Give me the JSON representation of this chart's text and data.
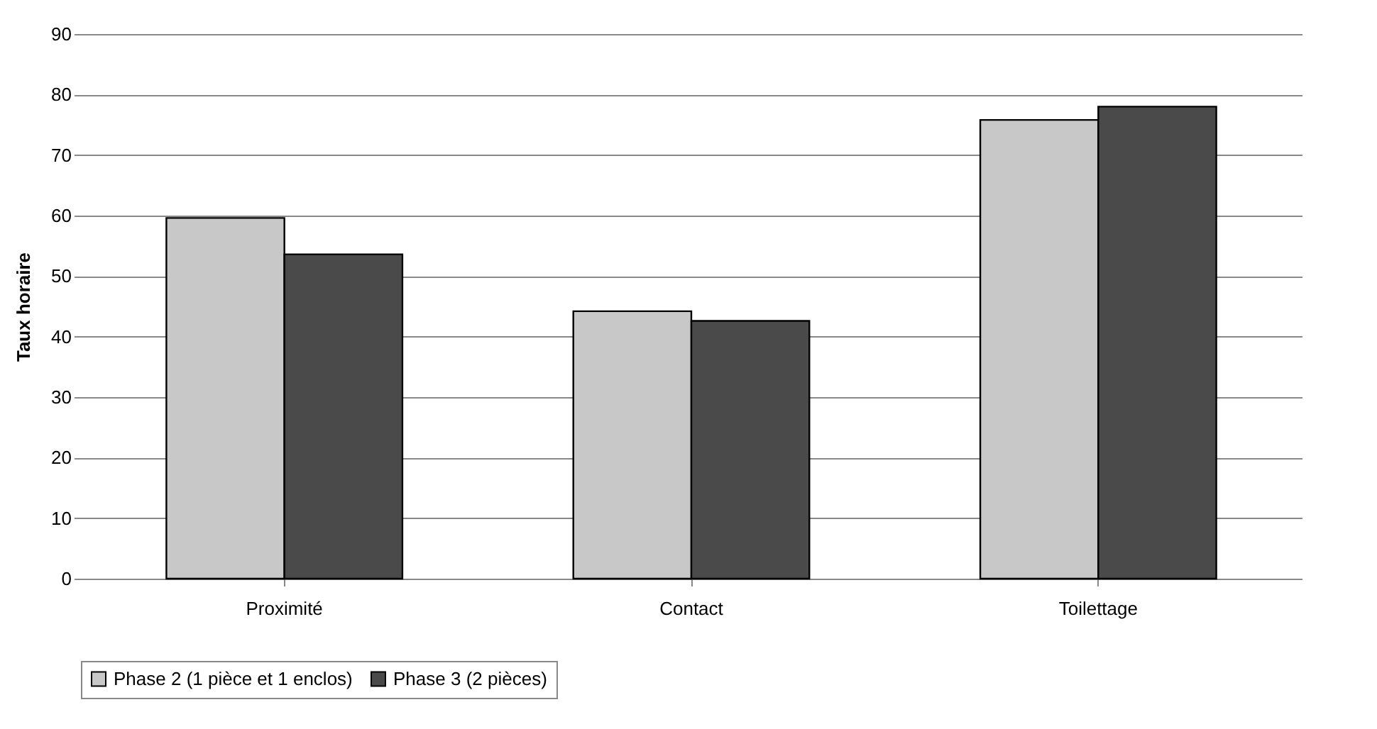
{
  "chart_data": {
    "type": "bar",
    "ylabel": "Taux horaire",
    "categories": [
      "Proximité",
      "Contact",
      "Toilettage"
    ],
    "series": [
      {
        "name": "Phase 2 (1 pièce et 1 enclos)",
        "color": "#c8c8c8",
        "values": [
          59.6,
          44.2,
          75.8
        ]
      },
      {
        "name": "Phase 3 (2 pièces)",
        "color": "#4a4a4a",
        "values": [
          53.6,
          42.6,
          78
        ]
      }
    ],
    "ylim": [
      0,
      90
    ],
    "yticks": [
      0,
      10,
      20,
      30,
      40,
      50,
      60,
      70,
      80,
      90
    ],
    "grid": "y",
    "legend": "bottom"
  }
}
